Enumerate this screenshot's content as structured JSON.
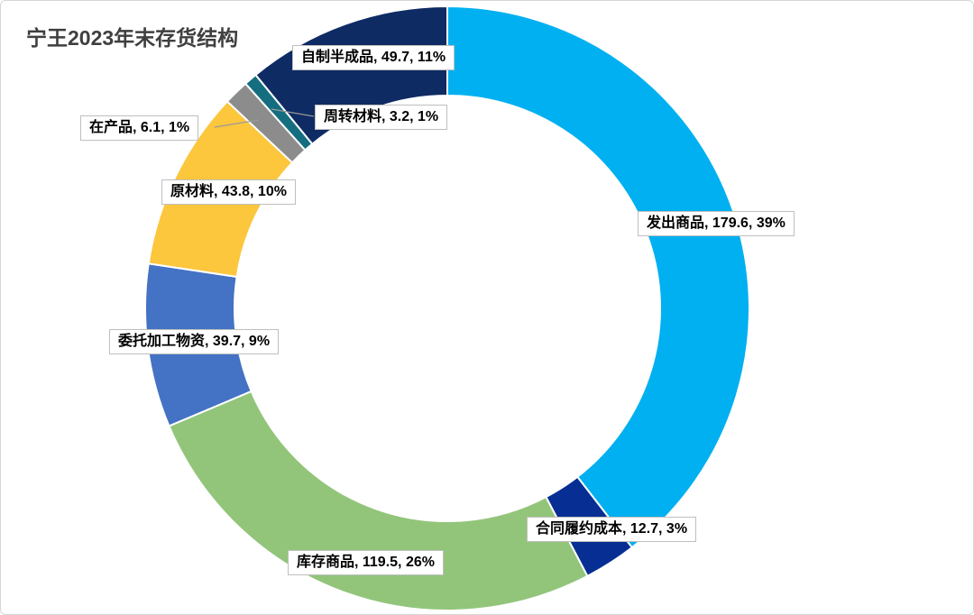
{
  "page": {
    "title": "宁王2023年末存货结构",
    "background_color": "#FFFFFF"
  },
  "chart_data": {
    "type": "pie",
    "subtype": "donut",
    "title": "宁王2023年末存货结构",
    "direction": "clockwise",
    "start_angle_deg": 0,
    "hole_ratio": 0.7,
    "legend": "none",
    "categories": [
      "发出商品",
      "合同履约成本",
      "库存商品",
      "委托加工物资",
      "原材料",
      "在产品",
      "周转材料",
      "自制半成品"
    ],
    "values": [
      179.6,
      12.7,
      119.5,
      39.7,
      43.8,
      6.1,
      3.2,
      49.7
    ],
    "percentages": [
      39,
      3,
      26,
      9,
      10,
      1,
      1,
      11
    ],
    "colors": [
      "#00B0F0",
      "#062E93",
      "#92C57A",
      "#4472C4",
      "#FCC63D",
      "#8C8C8C",
      "#156E7F",
      "#0F2B64"
    ],
    "label_texts": [
      "发出商品, 179.6, 39%",
      "合同履约成本, 12.7, 3%",
      "库存商品, 119.5, 26%",
      "委托加工物资, 39.7, 9%",
      "原材料, 43.8, 10%",
      "在产品, 6.1, 1%",
      "周转材料, 3.2, 1%",
      "自制半成品, 49.7, 11%"
    ],
    "label_box_style": {
      "background": "#FFFFFF",
      "border_color": "#BFBFBF",
      "text_color": "#000000"
    },
    "leader_line_color": "#9A9A9A",
    "slice_outline_color": "#FFFFFF"
  }
}
